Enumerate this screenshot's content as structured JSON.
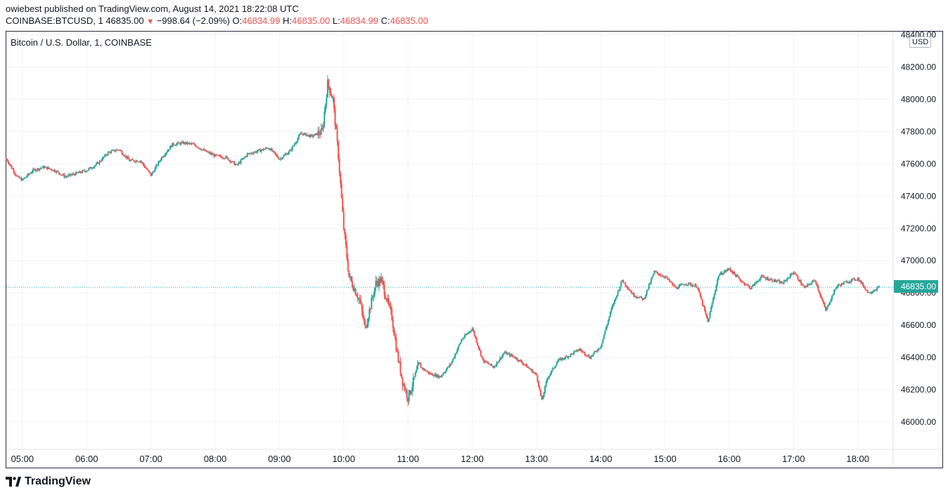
{
  "header": {
    "published_line": "owiebest published on TradingView.com, August 14, 2021 18:22:08 UTC",
    "symbol": "COINBASE:BTCUSD, 1",
    "last_price": "46835.00",
    "change": "−998.64 (−2.09%)",
    "o_label": "O:",
    "o_value": "46834.99",
    "h_label": "H:",
    "h_value": "46835.00",
    "l_label": "L:",
    "l_value": "46834.99",
    "c_label": "C:",
    "c_value": "46835.00"
  },
  "pane": {
    "title": "Bitcoin / U.S. Dollar, 1, COINBASE",
    "currency": "USD",
    "last_price_tag": "46835.00"
  },
  "footer": {
    "brand": "TradingView"
  },
  "colors": {
    "up": "#26a69a",
    "down": "#ef5350",
    "grid": "#f0f3fa",
    "axis_text": "#131722",
    "border": "#2a2e39"
  },
  "chart_data": {
    "type": "candlestick",
    "title": "Bitcoin / U.S. Dollar, 1, COINBASE",
    "ylim": [
      45830,
      48420
    ],
    "y_ticks": [
      46000,
      46200,
      46400,
      46600,
      46800,
      47000,
      47200,
      47400,
      47600,
      47800,
      48000,
      48200,
      48400
    ],
    "x_ticks": [
      "05:00",
      "06:00",
      "07:00",
      "08:00",
      "09:00",
      "10:00",
      "11:00",
      "12:00",
      "13:00",
      "14:00",
      "15:00",
      "16:00",
      "17:00",
      "18:00"
    ],
    "last_price": 46835.0,
    "grid": true,
    "series_close_path": [
      [
        "04:45",
        47630
      ],
      [
        "04:55",
        47520
      ],
      [
        "05:00",
        47500
      ],
      [
        "05:10",
        47560
      ],
      [
        "05:20",
        47580
      ],
      [
        "05:30",
        47560
      ],
      [
        "05:40",
        47520
      ],
      [
        "05:50",
        47540
      ],
      [
        "06:00",
        47560
      ],
      [
        "06:10",
        47600
      ],
      [
        "06:20",
        47670
      ],
      [
        "06:30",
        47690
      ],
      [
        "06:40",
        47620
      ],
      [
        "06:50",
        47620
      ],
      [
        "07:00",
        47530
      ],
      [
        "07:10",
        47640
      ],
      [
        "07:20",
        47720
      ],
      [
        "07:30",
        47730
      ],
      [
        "07:40",
        47720
      ],
      [
        "07:50",
        47680
      ],
      [
        "08:00",
        47650
      ],
      [
        "08:10",
        47640
      ],
      [
        "08:20",
        47590
      ],
      [
        "08:30",
        47660
      ],
      [
        "08:40",
        47680
      ],
      [
        "08:50",
        47700
      ],
      [
        "09:00",
        47630
      ],
      [
        "09:10",
        47680
      ],
      [
        "09:20",
        47790
      ],
      [
        "09:30",
        47770
      ],
      [
        "09:40",
        47800
      ],
      [
        "09:45",
        48100
      ],
      [
        "09:50",
        48000
      ],
      [
        "09:55",
        47650
      ],
      [
        "10:00",
        47200
      ],
      [
        "10:05",
        46900
      ],
      [
        "10:15",
        46750
      ],
      [
        "10:20",
        46580
      ],
      [
        "10:30",
        46860
      ],
      [
        "10:35",
        46880
      ],
      [
        "10:45",
        46650
      ],
      [
        "10:50",
        46420
      ],
      [
        "10:55",
        46250
      ],
      [
        "11:00",
        46150
      ],
      [
        "11:10",
        46350
      ],
      [
        "11:20",
        46300
      ],
      [
        "11:30",
        46280
      ],
      [
        "11:40",
        46360
      ],
      [
        "11:50",
        46510
      ],
      [
        "12:00",
        46580
      ],
      [
        "12:10",
        46380
      ],
      [
        "12:20",
        46340
      ],
      [
        "12:30",
        46430
      ],
      [
        "12:40",
        46400
      ],
      [
        "12:50",
        46350
      ],
      [
        "13:00",
        46290
      ],
      [
        "13:05",
        46130
      ],
      [
        "13:10",
        46270
      ],
      [
        "13:20",
        46380
      ],
      [
        "13:30",
        46410
      ],
      [
        "13:40",
        46450
      ],
      [
        "13:50",
        46400
      ],
      [
        "14:00",
        46470
      ],
      [
        "14:10",
        46700
      ],
      [
        "14:20",
        46880
      ],
      [
        "14:30",
        46790
      ],
      [
        "14:40",
        46760
      ],
      [
        "14:50",
        46930
      ],
      [
        "15:00",
        46900
      ],
      [
        "15:10",
        46830
      ],
      [
        "15:20",
        46860
      ],
      [
        "15:30",
        46840
      ],
      [
        "15:40",
        46620
      ],
      [
        "15:50",
        46910
      ],
      [
        "16:00",
        46950
      ],
      [
        "16:10",
        46880
      ],
      [
        "16:20",
        46830
      ],
      [
        "16:30",
        46900
      ],
      [
        "16:40",
        46880
      ],
      [
        "16:50",
        46860
      ],
      [
        "17:00",
        46930
      ],
      [
        "17:10",
        46830
      ],
      [
        "17:20",
        46880
      ],
      [
        "17:30",
        46690
      ],
      [
        "17:40",
        46840
      ],
      [
        "17:50",
        46870
      ],
      [
        "18:00",
        46890
      ],
      [
        "18:10",
        46800
      ],
      [
        "18:20",
        46835
      ]
    ]
  }
}
